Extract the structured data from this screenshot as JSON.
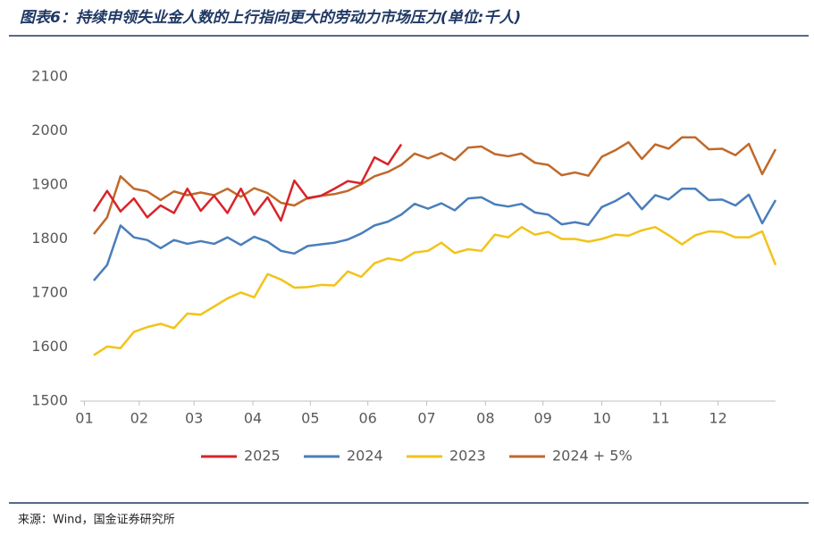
{
  "chart_data": {
    "type": "line",
    "title": "图表6：持续申领失业金人数的上行指向更大的劳动力市场压力(单位:千人)",
    "x": [
      1,
      2,
      3,
      4,
      5,
      6,
      7,
      8,
      9,
      10,
      11,
      12,
      13,
      14,
      15,
      16,
      17,
      18,
      19,
      20,
      21,
      22,
      23,
      24,
      25,
      26,
      27,
      28,
      29,
      30,
      31,
      32,
      33,
      34,
      35,
      36,
      37,
      38,
      39,
      40,
      41,
      42,
      43,
      44,
      45,
      46,
      47,
      48,
      49,
      50,
      51,
      52
    ],
    "xlim": [
      0,
      52
    ],
    "xticks": [
      {
        "value": 0.3,
        "label": "01"
      },
      {
        "value": 4.4,
        "label": "02"
      },
      {
        "value": 8.5,
        "label": "03"
      },
      {
        "value": 12.9,
        "label": "04"
      },
      {
        "value": 17.2,
        "label": "05"
      },
      {
        "value": 21.5,
        "label": "06"
      },
      {
        "value": 25.9,
        "label": "07"
      },
      {
        "value": 30.3,
        "label": "08"
      },
      {
        "value": 34.6,
        "label": "09"
      },
      {
        "value": 39,
        "label": "10"
      },
      {
        "value": 43.4,
        "label": "11"
      },
      {
        "value": 47.7,
        "label": "12"
      }
    ],
    "ylim": [
      1500,
      2100
    ],
    "yticks": [
      1500,
      1600,
      1700,
      1800,
      1900,
      2000,
      2100
    ],
    "series": [
      {
        "name": "2025",
        "color": "#d9232a",
        "values": [
          1851,
          1889,
          1851,
          1875,
          1840,
          1862,
          1848,
          1893,
          1852,
          1880,
          1848,
          1893,
          1845,
          1877,
          1834,
          1908,
          1875,
          1880,
          1893,
          1907,
          1903,
          1951,
          1938,
          1975,
          null,
          null,
          null,
          null,
          null,
          null,
          null,
          null,
          null,
          null,
          null,
          null,
          null,
          null,
          null,
          null,
          null,
          null,
          null,
          null,
          null,
          null,
          null,
          null,
          null,
          null,
          null,
          null
        ]
      },
      {
        "name": "2024",
        "color": "#4a7ebb",
        "values": [
          1723,
          1752,
          1825,
          1803,
          1798,
          1783,
          1798,
          1791,
          1796,
          1791,
          1803,
          1789,
          1804,
          1795,
          1778,
          1773,
          1787,
          1790,
          1793,
          1799,
          1810,
          1825,
          1832,
          1845,
          1865,
          1856,
          1866,
          1853,
          1875,
          1877,
          1864,
          1860,
          1865,
          1849,
          1845,
          1827,
          1831,
          1826,
          1859,
          1870,
          1885,
          1855,
          1881,
          1873,
          1893,
          1893,
          1872,
          1873,
          1862,
          1882,
          1829,
          1872
        ]
      },
      {
        "name": "2023",
        "color": "#f2c319",
        "values": [
          1585,
          1601,
          1598,
          1628,
          1637,
          1643,
          1635,
          1662,
          1660,
          1675,
          1690,
          1701,
          1692,
          1735,
          1725,
          1710,
          1711,
          1715,
          1714,
          1740,
          1730,
          1755,
          1764,
          1760,
          1775,
          1778,
          1793,
          1774,
          1781,
          1778,
          1808,
          1803,
          1822,
          1808,
          1813,
          1800,
          1800,
          1795,
          1800,
          1808,
          1806,
          1816,
          1822,
          1807,
          1790,
          1807,
          1814,
          1813,
          1803,
          1803,
          1814,
          1752
        ]
      },
      {
        "name": "2024 + 5%",
        "color": "#c0692a",
        "values": [
          1809,
          1840,
          1916,
          1893,
          1888,
          1872,
          1888,
          1881,
          1886,
          1881,
          1893,
          1878,
          1894,
          1885,
          1867,
          1862,
          1876,
          1880,
          1883,
          1889,
          1901,
          1916,
          1924,
          1937,
          1958,
          1949,
          1959,
          1946,
          1969,
          1971,
          1957,
          1953,
          1958,
          1941,
          1937,
          1918,
          1923,
          1917,
          1952,
          1964,
          1979,
          1948,
          1975,
          1967,
          1988,
          1988,
          1966,
          1967,
          1955,
          1976,
          1920,
          1966
        ]
      }
    ],
    "grid": false,
    "legend": "bottom"
  },
  "source": "来源：Wind，国金证券研究所"
}
